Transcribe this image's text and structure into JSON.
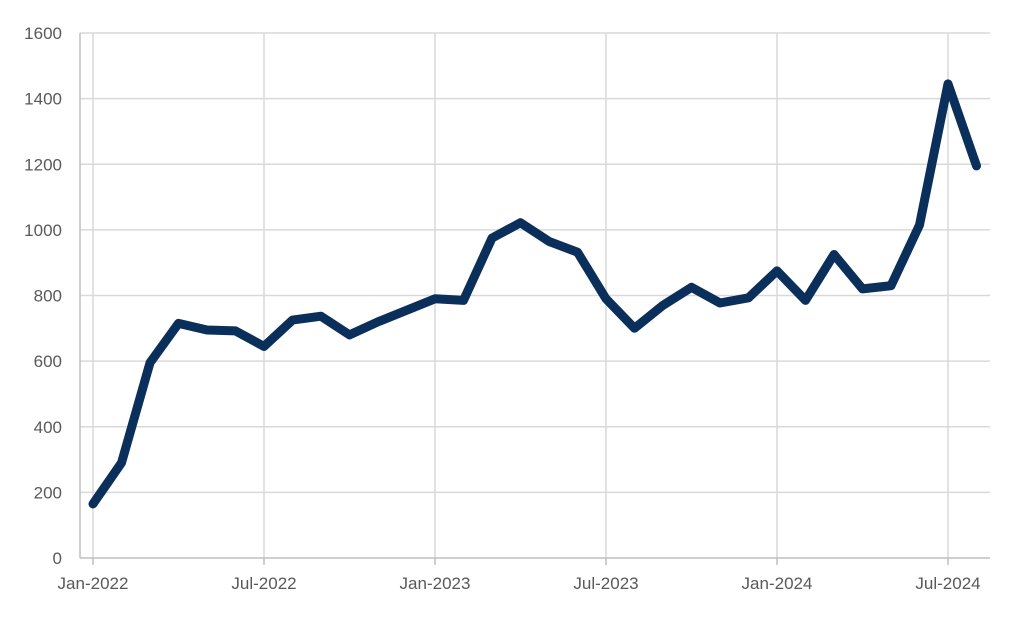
{
  "chart_data": {
    "type": "line",
    "title": "",
    "xlabel": "",
    "ylabel": "",
    "x": [
      "2022-01",
      "2022-02",
      "2022-03",
      "2022-04",
      "2022-05",
      "2022-06",
      "2022-07",
      "2022-08",
      "2022-09",
      "2022-10",
      "2022-11",
      "2022-12",
      "2023-01",
      "2023-02",
      "2023-03",
      "2023-04",
      "2023-05",
      "2023-06",
      "2023-07",
      "2023-08",
      "2023-09",
      "2023-10",
      "2023-11",
      "2023-12",
      "2024-01",
      "2024-02",
      "2024-03",
      "2024-04",
      "2024-05",
      "2024-06",
      "2024-07",
      "2024-08"
    ],
    "series": [
      {
        "color": "#0b2f5b",
        "values": [
          165,
          290,
          595,
          715,
          695,
          692,
          645,
          725,
          737,
          680,
          720,
          755,
          790,
          785,
          975,
          1022,
          965,
          932,
          790,
          700,
          770,
          825,
          777,
          793,
          875,
          785,
          925,
          820,
          830,
          1015,
          1445,
          1195
        ]
      }
    ],
    "ylim": [
      0,
      1600
    ],
    "yticks": [
      0,
      200,
      400,
      600,
      800,
      1000,
      1200,
      1400,
      1600
    ],
    "ytick_labels": [
      "0",
      "200",
      "400",
      "600",
      "800",
      "1000",
      "1200",
      "1400",
      "1600"
    ],
    "xticks": [
      "2022-01",
      "2022-07",
      "2023-01",
      "2023-07",
      "2024-01",
      "2024-07"
    ],
    "xtick_labels": [
      "Jan-2022",
      "Jul-2022",
      "Jan-2023",
      "Jul-2023",
      "Jan-2024",
      "Jul-2024"
    ],
    "grid": true,
    "legend": "none"
  }
}
